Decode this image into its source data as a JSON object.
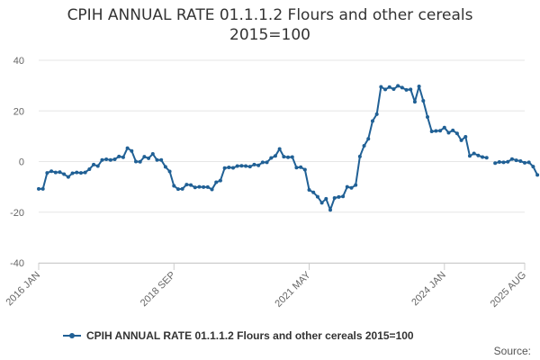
{
  "chart_data": {
    "type": "line",
    "title_lines": [
      "CPIH ANNUAL RATE 01.1.1.2 Flours and other cereals",
      "2015=100"
    ],
    "ylim": [
      -40,
      40
    ],
    "yticks": [
      40,
      20,
      0,
      -20,
      -40
    ],
    "ytick_labels": [
      "40",
      "20",
      "0",
      "-20",
      "-40"
    ],
    "xlim": [
      2016.0,
      2025.583
    ],
    "xticks": [
      {
        "label": "2016 JAN",
        "x": 2016.0
      },
      {
        "label": "2018 SEP",
        "x": 2018.667
      },
      {
        "label": "2021 MAY",
        "x": 2021.333
      },
      {
        "label": "2024 JAN",
        "x": 2024.0
      },
      {
        "label": "2025 AUG",
        "x": 2025.583
      }
    ],
    "grid": true,
    "series": [
      {
        "name": "CPIH ANNUAL RATE 01.1.1.2 Flours and other cereals 2015=100",
        "color": "#206095",
        "segments": [
          {
            "start_year": 2016,
            "start_month": 1,
            "values": [
              -10.8,
              -10.8,
              -4.5,
              -3.8,
              -4.3,
              -4.2,
              -5.0,
              -6.1,
              -4.6,
              -4.3,
              -4.5,
              -4.3,
              -3.0,
              -1.2,
              -1.8,
              0.6,
              0.9,
              0.6,
              0.9,
              2.0,
              1.7,
              5.3,
              4.2,
              0.0,
              -0.1,
              1.9,
              1.3,
              3.0,
              0.6,
              0.6,
              -2.1,
              -3.9,
              -9.6,
              -10.9,
              -10.8,
              -9.1,
              -9.3,
              -10.2,
              -10.0,
              -10.1,
              -10.1,
              -11.0,
              -8.2,
              -7.5,
              -2.6,
              -2.3,
              -2.5,
              -1.8,
              -1.7,
              -1.8,
              -2.0,
              -1.2,
              -1.5,
              -0.3,
              -0.3,
              1.4,
              2.2,
              5.0,
              1.9,
              1.7,
              1.8,
              -2.4,
              -2.2,
              -3.2,
              -11.2,
              -12.2,
              -13.9,
              -16.3,
              -14.7,
              -19.1,
              -14.4,
              -14.0,
              -13.8,
              -10.0,
              -10.4,
              -9.3,
              2.0,
              6.2,
              9.0,
              16.0,
              18.7,
              29.5,
              28.5,
              29.4,
              28.6,
              29.9,
              29.2,
              28.3,
              28.5,
              23.6,
              29.7,
              24.0,
              17.6,
              11.9,
              12.1,
              12.2,
              13.4,
              11.4,
              12.3,
              11.1,
              8.4,
              9.8,
              2.2,
              3.2,
              2.4,
              1.8,
              1.5
            ]
          },
          {
            "start_year": 2025,
            "start_month": 1,
            "values": [
              -0.6,
              -0.2,
              -0.3,
              -0.1,
              1.0,
              0.5,
              0.2,
              -0.5,
              -0.3,
              -2.0,
              -5.3
            ]
          }
        ]
      }
    ],
    "legend": {
      "label": "CPIH ANNUAL RATE 01.1.1.2 Flours and other cereals 2015=100",
      "position": "bottom"
    },
    "source_text": "Source:"
  }
}
